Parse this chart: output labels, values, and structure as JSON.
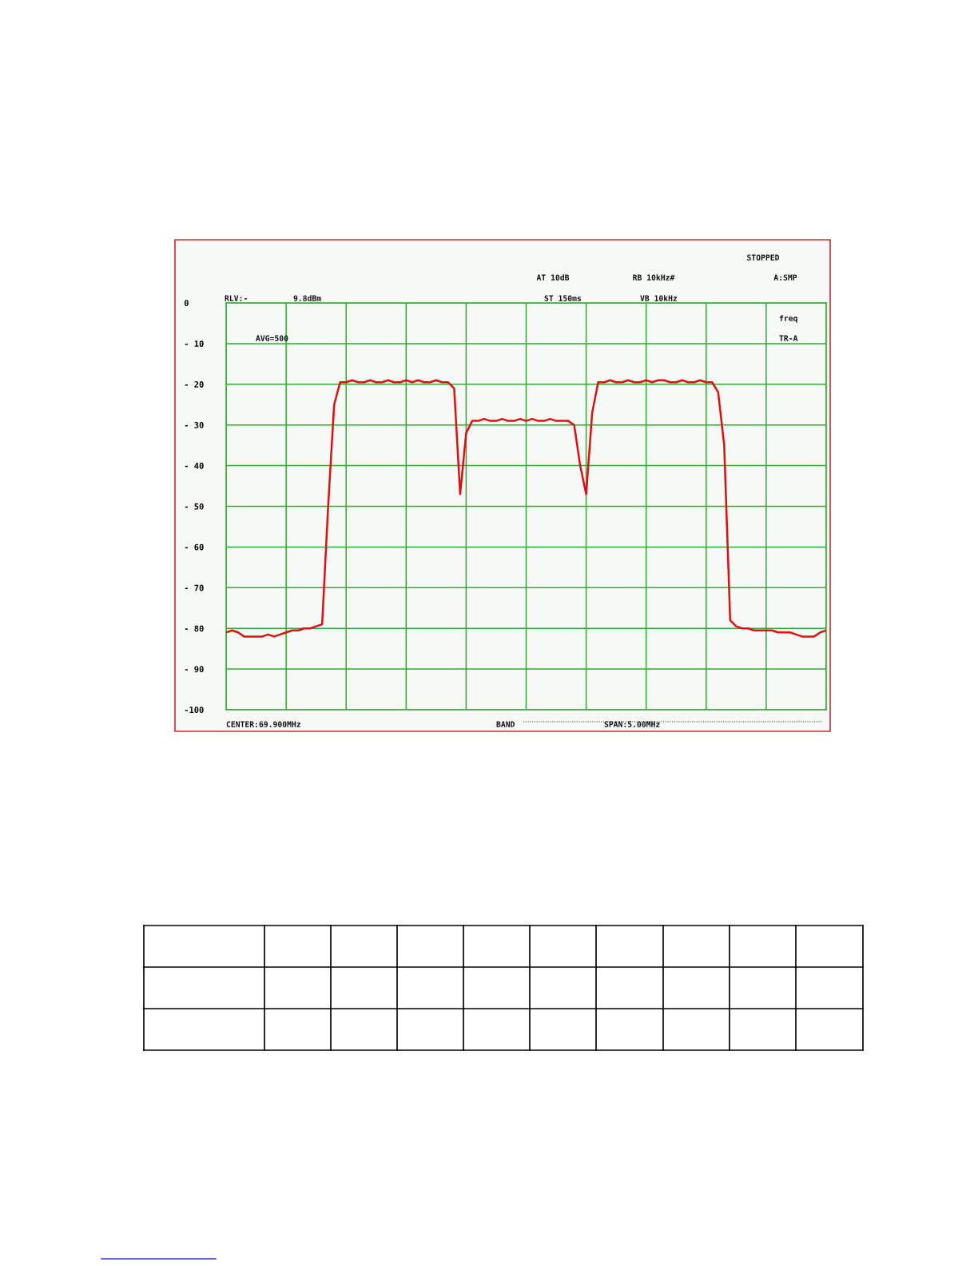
{
  "chart_data": {
    "type": "line",
    "categories": [
      null,
      null,
      null,
      null,
      null,
      null,
      null,
      null,
      null,
      null,
      null,
      null,
      null,
      null,
      null,
      null,
      null,
      null,
      null,
      null,
      null,
      null,
      null,
      null,
      null,
      null,
      null,
      null,
      null,
      null,
      null,
      null,
      null,
      null,
      null,
      null,
      null,
      null,
      null,
      null,
      null,
      null,
      null,
      null,
      null,
      null,
      null,
      null,
      null,
      null,
      null,
      null,
      null,
      null,
      null,
      null,
      null,
      null,
      null,
      null,
      null,
      null,
      null,
      null,
      null,
      null,
      null,
      null,
      null,
      null,
      null,
      null,
      null,
      null,
      null,
      null,
      null,
      null,
      null,
      null,
      null,
      null,
      null,
      null,
      null,
      null,
      null,
      null,
      null,
      null,
      null,
      null,
      null,
      null,
      null,
      null,
      null,
      null,
      null,
      null,
      null
    ],
    "series": [
      {
        "color": "#dd1111",
        "values": [
          -81,
          -80.5,
          -81,
          -82,
          -82,
          -82,
          -82,
          -81.5,
          -82,
          -81.5,
          -81,
          -80.5,
          -80.5,
          -80,
          -80,
          -79.5,
          -79,
          -50,
          -25,
          -19.5,
          -19.5,
          -19,
          -19.5,
          -19.5,
          -19,
          -19.5,
          -19.5,
          -19,
          -19.5,
          -19.5,
          -19,
          -19.5,
          -19,
          -19.5,
          -19.5,
          -19,
          -19.5,
          -19.5,
          -21,
          -47,
          -32,
          -29,
          -29,
          -28.5,
          -29,
          -29,
          -28.5,
          -29,
          -29,
          -28.5,
          -29,
          -28.5,
          -29,
          -29,
          -28.5,
          -29,
          -29,
          -29,
          -30,
          -40,
          -47,
          -27,
          -19.5,
          -19.5,
          -19,
          -19.5,
          -19.5,
          -19,
          -19.5,
          -19.5,
          -19,
          -19.5,
          -19,
          -19,
          -19.5,
          -19.5,
          -19,
          -19.5,
          -19.5,
          -19,
          -19.5,
          -19.5,
          -22,
          -35,
          -78,
          -79.5,
          -80,
          -80,
          -80.5,
          -80.5,
          -80.5,
          -80.5,
          -81,
          -81,
          -81,
          -81.5,
          -82,
          -82,
          -82,
          -81,
          -80.5
        ]
      }
    ],
    "ylim": [
      -100,
      0
    ],
    "yticks": [
      {
        "value": 0,
        "label": "0"
      },
      {
        "value": -10,
        "label": "- 10"
      },
      {
        "value": -20,
        "label": "- 20"
      },
      {
        "value": -30,
        "label": "- 30"
      },
      {
        "value": -40,
        "label": "- 40"
      },
      {
        "value": -50,
        "label": "- 50"
      },
      {
        "value": -60,
        "label": "- 60"
      },
      {
        "value": -70,
        "label": "- 70"
      },
      {
        "value": -80,
        "label": "- 80"
      },
      {
        "value": -90,
        "label": "- 90"
      },
      {
        "value": -100,
        "label": "-100"
      }
    ],
    "grid": true,
    "line_style": "solid",
    "annotations": [
      "STOPPED",
      "AT 10dB",
      "RB 10kHz#",
      "A:SMP",
      "RLV:-",
      "9.8dBm",
      "ST 150ms",
      "VB 10kHz",
      "AVG=500",
      "freq",
      "TR-A",
      "CENTER:69.900MHz",
      "BAND",
      "SPAN:5.00MHz"
    ]
  }
}
